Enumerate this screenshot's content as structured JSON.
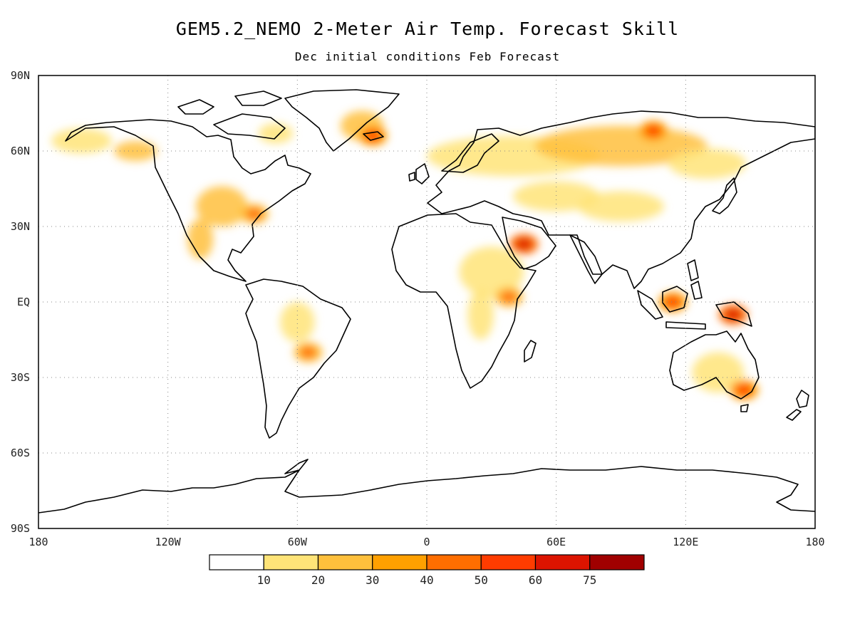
{
  "title": "GEM5.2_NEMO 2-Meter Air Temp. Forecast Skill",
  "subtitle": "Dec initial conditions  Feb Forecast",
  "map": {
    "projection": "cylindrical equidistant",
    "lon_range": [
      -180,
      180
    ],
    "lat_range": [
      -90,
      90
    ],
    "grid": "dotted",
    "lat_labels": [
      "90N",
      "60N",
      "30N",
      "EQ",
      "30S",
      "60S",
      "90S"
    ],
    "lon_labels": [
      "180",
      "120W",
      "60W",
      "0",
      "60E",
      "120E",
      "180"
    ]
  },
  "colorbar": {
    "labels": [
      "10",
      "20",
      "30",
      "40",
      "50",
      "60",
      "75"
    ],
    "colors": [
      "#ffffff",
      "#ffe478",
      "#ffc03c",
      "#ffa000",
      "#ff6e00",
      "#ff3c00",
      "#dc1400",
      "#a00000"
    ]
  },
  "chart_data": {
    "type": "heatmap",
    "title": "GEM5.2_NEMO 2-Meter Air Temp. Forecast Skill",
    "subtitle": "Dec initial conditions  Feb Forecast",
    "x_range": [
      -180,
      180
    ],
    "y_range": [
      -90,
      90
    ],
    "levels": [
      10,
      20,
      30,
      40,
      50,
      60,
      75
    ],
    "high_skill_regions": [
      {
        "region": "Arabian Peninsula",
        "lon": 45,
        "lat": 23,
        "level": 60
      },
      {
        "region": "Northern Siberia",
        "lon": 105,
        "lat": 68,
        "level": 50
      },
      {
        "region": "New Guinea",
        "lon": 142,
        "lat": -5,
        "level": 60
      },
      {
        "region": "Borneo",
        "lon": 114,
        "lat": 0,
        "level": 50
      },
      {
        "region": "Southeast Australia",
        "lon": 147,
        "lat": -35,
        "level": 50
      },
      {
        "region": "Eastern United States",
        "lon": -80,
        "lat": 35,
        "level": 40
      },
      {
        "region": "East Greenland",
        "lon": -25,
        "lat": 66,
        "level": 50
      },
      {
        "region": "Paraguay / Southern Brazil",
        "lon": -55,
        "lat": -20,
        "level": 40
      },
      {
        "region": "East Africa",
        "lon": 38,
        "lat": 2,
        "level": 40
      }
    ]
  }
}
